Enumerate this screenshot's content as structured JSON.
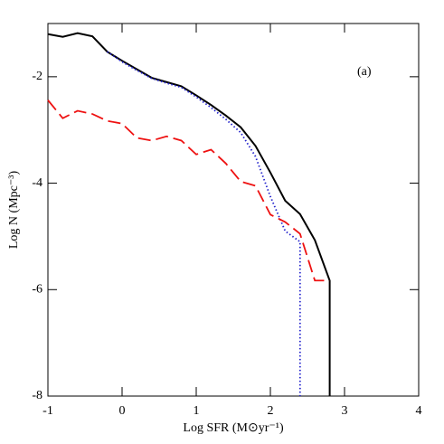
{
  "chart_data": {
    "type": "line",
    "xlabel": "Log SFR  (M⊙yr⁻¹)",
    "ylabel": "Log N  (Mpc⁻³)",
    "annotation": "(a)",
    "xlim": [
      -1,
      4
    ],
    "ylim": [
      -8,
      -1
    ],
    "xticks": [
      -1,
      0,
      1,
      2,
      3,
      4
    ],
    "yticks": [
      -8,
      -6,
      -4,
      -2
    ],
    "series": [
      {
        "color": "#000000",
        "style": "solid",
        "x": [
          -1,
          -0.8,
          -0.6,
          -0.4,
          -0.2,
          0,
          0.2,
          0.4,
          0.6,
          0.8,
          1.0,
          1.2,
          1.4,
          1.6,
          1.8,
          2.0,
          2.2,
          2.4,
          2.6,
          2.8,
          2.8
        ],
        "values": [
          -1.2,
          -1.25,
          -1.18,
          -1.24,
          -1.53,
          -1.7,
          -1.86,
          -2.02,
          -2.1,
          -2.18,
          -2.35,
          -2.53,
          -2.73,
          -2.95,
          -3.3,
          -3.8,
          -4.33,
          -4.58,
          -5.07,
          -5.83,
          -8
        ]
      },
      {
        "color": "#2222cc",
        "style": "dotted",
        "x": [
          -0.2,
          0,
          0.2,
          0.4,
          0.6,
          0.8,
          1.0,
          1.2,
          1.4,
          1.6,
          1.8,
          2.0,
          2.2,
          2.4,
          2.4
        ],
        "values": [
          -1.53,
          -1.72,
          -1.88,
          -2.03,
          -2.12,
          -2.2,
          -2.38,
          -2.58,
          -2.8,
          -3.05,
          -3.5,
          -4.25,
          -4.9,
          -5.1,
          -8
        ]
      },
      {
        "color": "#ee1111",
        "style": "dashed",
        "x": [
          -1,
          -0.8,
          -0.6,
          -0.4,
          -0.2,
          0,
          0.2,
          0.4,
          0.6,
          0.8,
          1.0,
          1.2,
          1.4,
          1.6,
          1.8,
          2.0,
          2.2,
          2.4,
          2.6,
          2.8
        ],
        "values": [
          -2.44,
          -2.78,
          -2.64,
          -2.7,
          -2.83,
          -2.88,
          -3.15,
          -3.2,
          -3.12,
          -3.2,
          -3.46,
          -3.37,
          -3.63,
          -3.97,
          -4.05,
          -4.59,
          -4.73,
          -4.95,
          -5.83,
          -5.83
        ]
      }
    ]
  }
}
